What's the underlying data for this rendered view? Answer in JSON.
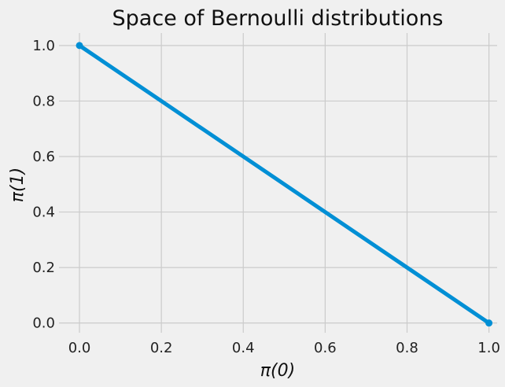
{
  "chart_data": {
    "type": "line",
    "title": "Space of Bernoulli distributions",
    "xlabel": "π(0)",
    "ylabel": "π(1)",
    "xlim": [
      -0.05,
      1.02
    ],
    "ylim": [
      -0.035,
      1.045
    ],
    "x_ticks": [
      "0.0",
      "0.2",
      "0.4",
      "0.6",
      "0.8",
      "1.0"
    ],
    "y_ticks": [
      "0.0",
      "0.2",
      "0.4",
      "0.6",
      "0.8",
      "1.0"
    ],
    "grid": true,
    "series": [
      {
        "x": [
          0.0,
          1.0
        ],
        "y": [
          1.0,
          0.0
        ],
        "markers": true,
        "color": "#008fd5"
      }
    ]
  }
}
